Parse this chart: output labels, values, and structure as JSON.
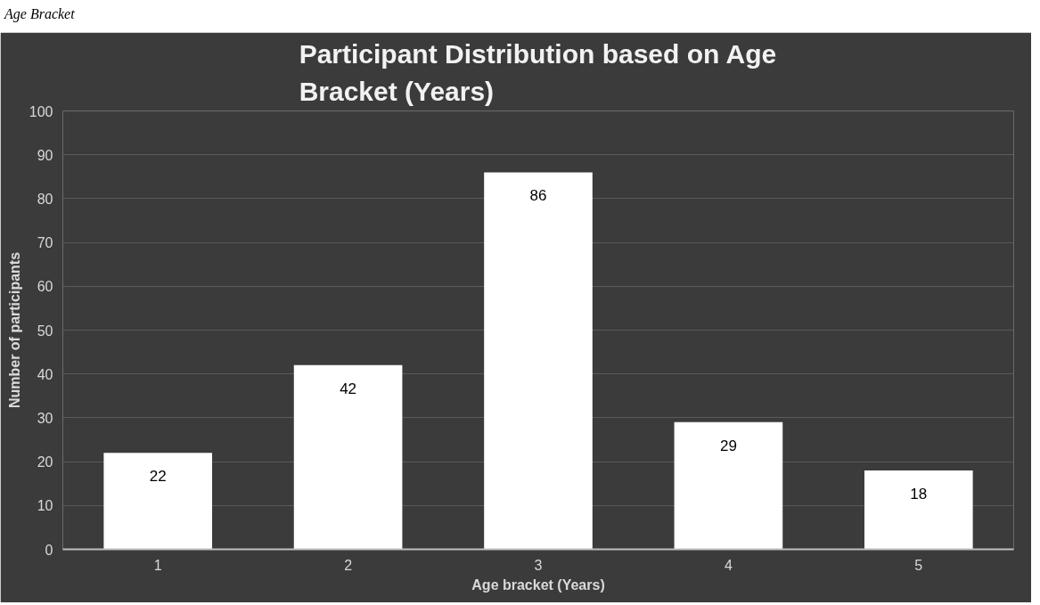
{
  "chart_data": {
    "type": "bar",
    "title": "Participant Distribution based on Age Bracket (Years)",
    "xlabel": "Age bracket (Years)",
    "ylabel": "Number of participants",
    "categories": [
      "1",
      "2",
      "3",
      "4",
      "5"
    ],
    "values": [
      22,
      42,
      86,
      29,
      18
    ],
    "color": "#ffffff",
    "ylim": [
      0,
      100
    ],
    "yticks": [
      0,
      10,
      20,
      30,
      40,
      50,
      60,
      70,
      80,
      90,
      100
    ],
    "grid": "y",
    "data_labels": true,
    "annotations": [
      "Age Bracket"
    ]
  }
}
